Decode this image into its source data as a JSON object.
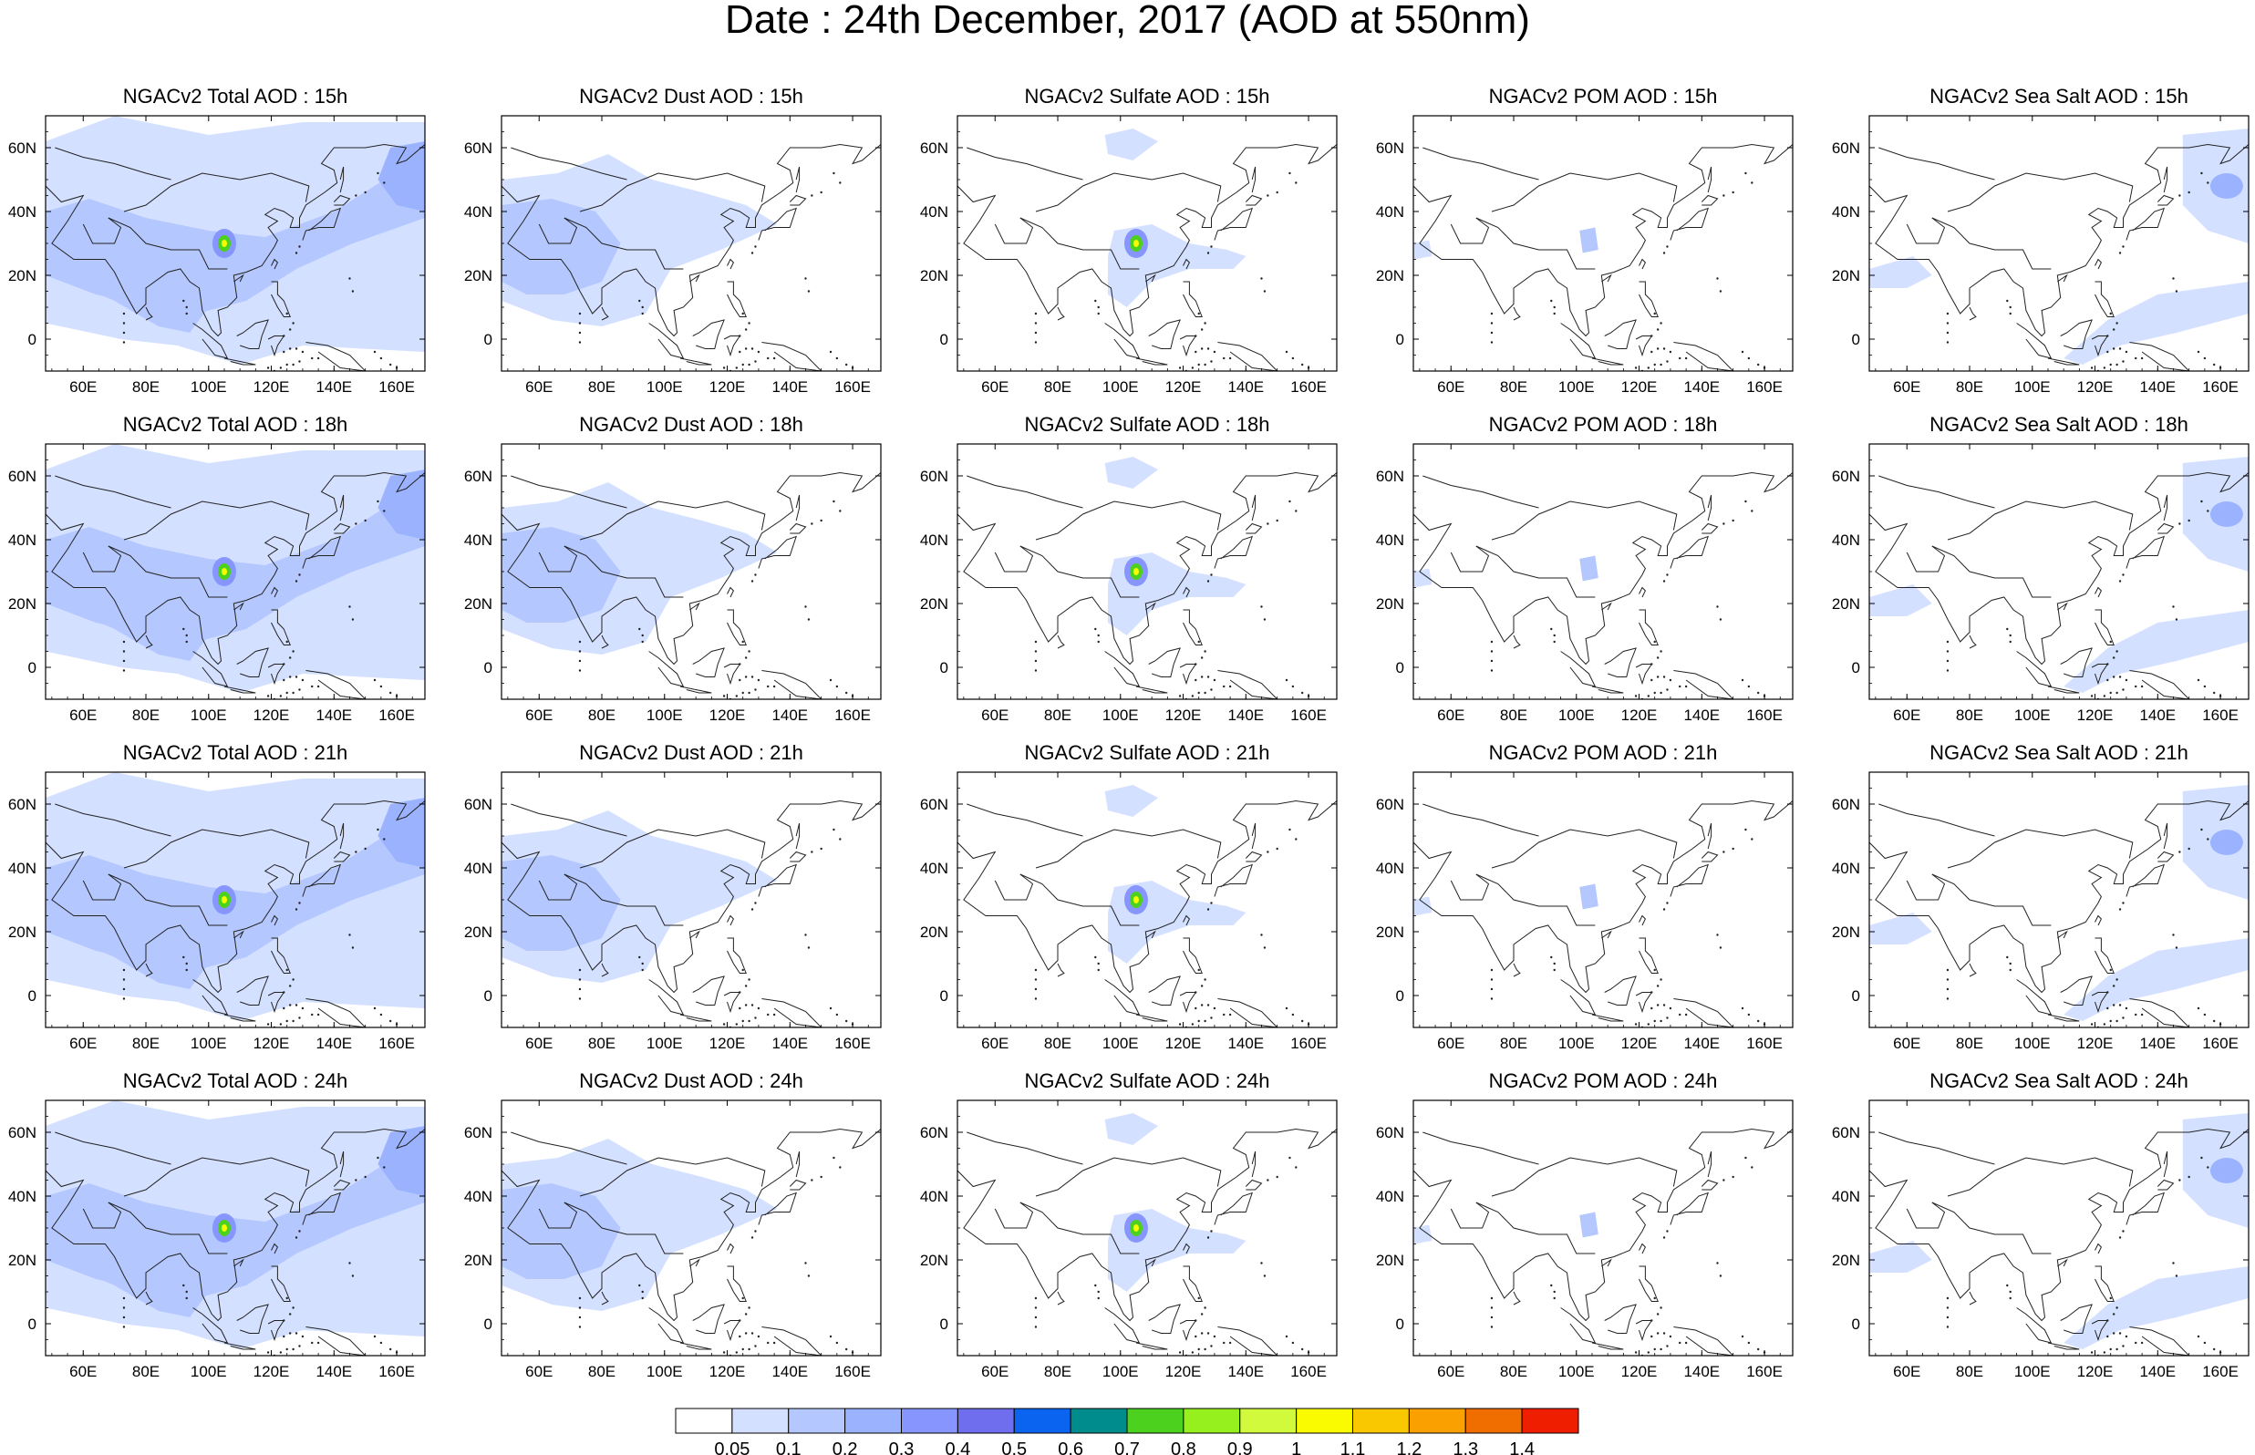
{
  "title": "Date : 24th December, 2017 (AOD at 550nm)",
  "axes": {
    "lon_range": [
      48,
      169
    ],
    "lat_range": [
      -10,
      70
    ],
    "lon_ticks": [
      "60E",
      "80E",
      "100E",
      "120E",
      "140E",
      "160E"
    ],
    "lon_tick_values": [
      60,
      80,
      100,
      120,
      140,
      160
    ],
    "lat_ticks": [
      "60N",
      "40N",
      "20N",
      "0"
    ],
    "lat_tick_values": [
      60,
      40,
      20,
      0
    ]
  },
  "panels": [
    [
      "NGACv2 Total AOD : 15h",
      "NGACv2 Dust AOD : 15h",
      "NGACv2 Sulfate AOD : 15h",
      "NGACv2 POM AOD : 15h",
      "NGACv2 Sea Salt AOD : 15h"
    ],
    [
      "NGACv2 Total AOD : 18h",
      "NGACv2 Dust AOD : 18h",
      "NGACv2 Sulfate AOD : 18h",
      "NGACv2 POM AOD : 18h",
      "NGACv2 Sea Salt AOD : 18h"
    ],
    [
      "NGACv2 Total AOD : 21h",
      "NGACv2 Dust AOD : 21h",
      "NGACv2 Sulfate AOD : 21h",
      "NGACv2 POM AOD : 21h",
      "NGACv2 Sea Salt AOD : 21h"
    ],
    [
      "NGACv2 Total AOD : 24h",
      "NGACv2 Dust AOD : 24h",
      "NGACv2 Sulfate AOD : 24h",
      "NGACv2 POM AOD : 24h",
      "NGACv2 Sea Salt  AOD : 24h"
    ]
  ],
  "colorbar": {
    "labels": [
      "0.05",
      "0.1",
      "0.2",
      "0.3",
      "0.4",
      "0.5",
      "0.6",
      "0.7",
      "0.8",
      "0.9",
      "1",
      "1.1",
      "1.2",
      "1.3",
      "1.4"
    ],
    "colors": [
      "#ffffff",
      "#d4e0ff",
      "#b4c8ff",
      "#9bb2ff",
      "#8796ff",
      "#6e6eee",
      "#0a64f0",
      "#008c8c",
      "#4cd21e",
      "#96f01e",
      "#d2fa3c",
      "#fafa00",
      "#fac800",
      "#faa000",
      "#f06e00",
      "#f01e00"
    ]
  },
  "map_colors": {
    "light": "#d4e0ff",
    "mid": "#b4c8ff",
    "strong": "#9bb2ff",
    "deep": "#8796ff",
    "hotspot_green": "#4cd21e",
    "hotspot_yellow": "#fafa00",
    "coast": "#222222"
  }
}
